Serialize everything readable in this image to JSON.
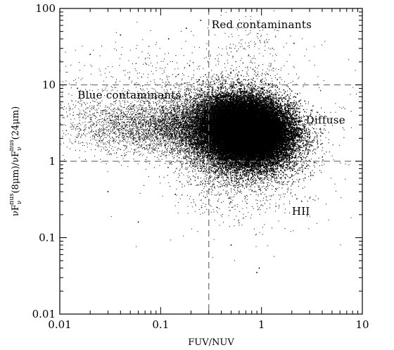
{
  "chart_data": {
    "type": "scatter",
    "title": "",
    "xlabel": "FUV/NUV",
    "ylabel": "νF_ν^nus(8μm)/νF_ν^nus(24μm)",
    "ylabel_parts": {
      "a": "νF",
      "a_sub": "ν",
      "a_sup": "nus",
      "b": "(8μm)/νF",
      "b_sub": "ν",
      "b_sup": "nus",
      "c": "(24μm)"
    },
    "x_scale": "log",
    "y_scale": "log",
    "xlim": [
      0.01,
      10
    ],
    "ylim": [
      0.01,
      100
    ],
    "x_ticks": [
      0.01,
      0.1,
      1,
      10
    ],
    "x_tick_labels": [
      "0.01",
      "0.1",
      "1",
      "10"
    ],
    "y_ticks": [
      0.01,
      0.1,
      1,
      10,
      100
    ],
    "y_tick_labels": [
      "0.01",
      "0.1",
      "1",
      "10",
      "100"
    ],
    "grid": false,
    "legend": "none",
    "divider_lines": {
      "vertical_x": 0.3,
      "horizontal_y": [
        1,
        10
      ]
    },
    "region_labels": [
      {
        "text": "Red contaminants",
        "x": 0.32,
        "y": 55
      },
      {
        "text": "Blue contaminants",
        "x": 0.015,
        "y": 6.6
      },
      {
        "text": "Diffuse",
        "x": 2.75,
        "y": 3.1
      },
      {
        "text": "HII",
        "x": 2.0,
        "y": 0.2
      }
    ],
    "series": [
      {
        "clusters": [
          {
            "n": 26000,
            "cx": 0.72,
            "cy": 2.5,
            "sx": 0.2,
            "sy": 0.2,
            "rho": -0.1,
            "dot": 1.5,
            "alpha": 1
          },
          {
            "n": 14000,
            "cx": 0.55,
            "cy": 2.2,
            "sx": 0.3,
            "sy": 0.28,
            "rho": -0.15,
            "dot": 1.1,
            "alpha": 1
          },
          {
            "n": 3500,
            "cx": 0.2,
            "cy": 3.0,
            "sx": 0.4,
            "sy": 0.16,
            "rho": 0.1,
            "dot": 1.0,
            "alpha": 1
          },
          {
            "n": 1500,
            "cx": 0.05,
            "cy": 3.2,
            "sx": 0.35,
            "sy": 0.2,
            "rho": 0,
            "dot": 1.0,
            "alpha": 1
          },
          {
            "n": 600,
            "cx": 0.7,
            "cy": 1.5,
            "sx": 0.5,
            "sy": 0.6,
            "rho": 0,
            "dot": 1.0,
            "alpha": 1
          },
          {
            "n": 350,
            "cx": 0.08,
            "cy": 12,
            "sx": 0.6,
            "sy": 0.25,
            "rho": 0,
            "dot": 1.0,
            "alpha": 1
          },
          {
            "n": 250,
            "cx": 0.8,
            "cy": 20,
            "sx": 0.2,
            "sy": 0.35,
            "rho": 0,
            "dot": 1.0,
            "alpha": 1
          },
          {
            "n": 150,
            "cx": 0.6,
            "cy": 0.35,
            "sx": 0.3,
            "sy": 0.2,
            "rho": 0,
            "dot": 1.0,
            "alpha": 1
          }
        ],
        "outliers": [
          [
            0.03,
            0.4
          ],
          [
            0.06,
            0.16
          ],
          [
            0.14,
            0.37
          ],
          [
            0.9,
            0.035
          ],
          [
            0.95,
            0.04
          ],
          [
            0.5,
            0.08
          ],
          [
            0.02,
            25
          ],
          [
            0.04,
            45
          ],
          [
            0.12,
            40
          ],
          [
            0.18,
            55
          ],
          [
            0.25,
            70
          ],
          [
            2.1,
            35
          ],
          [
            0.015,
            9
          ],
          [
            0.2,
            0.5
          ],
          [
            2.5,
            0.3
          ]
        ]
      }
    ]
  }
}
